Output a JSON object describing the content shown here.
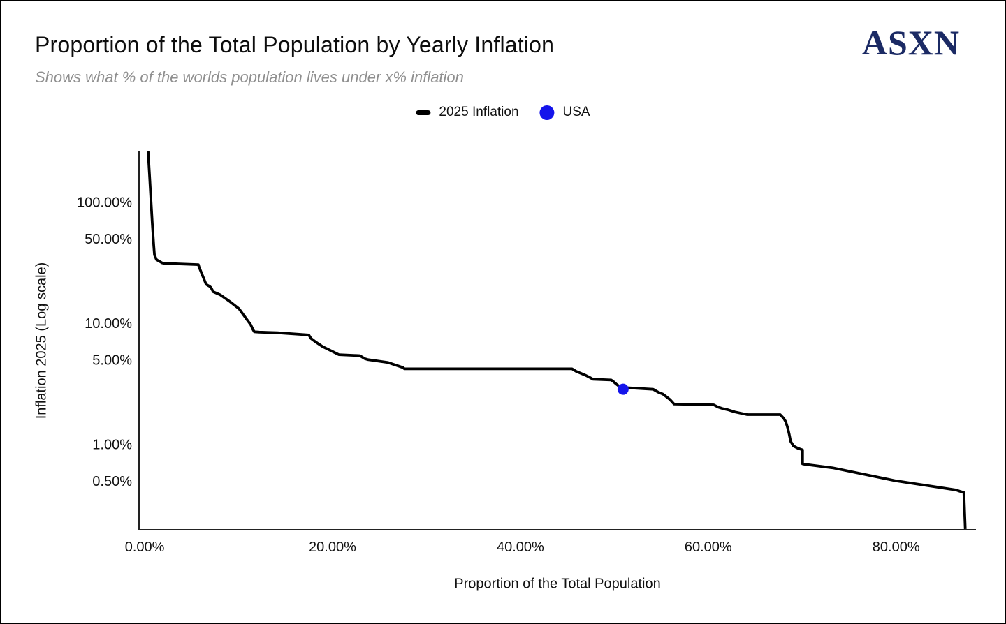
{
  "header": {
    "logo": "ASXN"
  },
  "legend": {
    "items": [
      {
        "label": "2025 Inflation",
        "marker": "dash-icon",
        "color": "#000000"
      },
      {
        "label": "USA",
        "marker": "dot-icon",
        "color": "#1414eb"
      }
    ]
  },
  "colors": {
    "curve": "#000000",
    "usa_blue": "#1414eb",
    "logo_navy": "#1b2a64",
    "subtitle_gray": "#8f8f8f",
    "axis": "#222222"
  },
  "chart_data": {
    "type": "line",
    "title": "Proportion of the Total Population by Yearly Inflation",
    "subtitle": "Shows what % of the worlds population lives under x% inflation",
    "grid": false,
    "legend_position": "top-center",
    "x_axis": {
      "label": "Proportion of the Total Population",
      "scale": "linear",
      "range": [
        -0.6,
        88.5
      ],
      "unit": "%",
      "ticks": [
        {
          "value": 0,
          "label": "0.00%"
        },
        {
          "value": 20,
          "label": "20.00%"
        },
        {
          "value": 40,
          "label": "40.00%"
        },
        {
          "value": 60,
          "label": "60.00%"
        },
        {
          "value": 80,
          "label": "80.00%"
        }
      ]
    },
    "y_axis": {
      "label": "Inflation 2025 (Log scale)",
      "scale": "log",
      "range": [
        0.197,
        262
      ],
      "unit": "%",
      "ticks": [
        {
          "value": 100,
          "label": "100.00%"
        },
        {
          "value": 50,
          "label": "50.00%"
        },
        {
          "value": 10,
          "label": "10.00%"
        },
        {
          "value": 5,
          "label": "5.00%"
        },
        {
          "value": 1,
          "label": "1.00%"
        },
        {
          "value": 0.5,
          "label": "0.50%"
        }
      ]
    },
    "series": [
      {
        "name": "2025 Inflation",
        "type": "line",
        "color": "#000000",
        "points": [
          [
            0.37,
            262
          ],
          [
            0.52,
            164
          ],
          [
            0.67,
            103
          ],
          [
            0.82,
            65
          ],
          [
            0.97,
            43.6
          ],
          [
            1.04,
            36.7
          ],
          [
            1.26,
            33.5
          ],
          [
            1.86,
            31.5
          ],
          [
            2.08,
            31.2
          ],
          [
            5.72,
            30.5
          ],
          [
            5.8,
            29
          ],
          [
            6.54,
            21
          ],
          [
            6.69,
            20.6
          ],
          [
            6.9,
            20.2
          ],
          [
            7.06,
            19.7
          ],
          [
            7.3,
            18.2
          ],
          [
            8.03,
            17.2
          ],
          [
            9.07,
            15.1
          ],
          [
            10.04,
            13.2
          ],
          [
            10.56,
            11.6
          ],
          [
            11.3,
            9.7
          ],
          [
            11.52,
            8.9
          ],
          [
            11.67,
            8.5
          ],
          [
            12.2,
            8.45
          ],
          [
            14.13,
            8.35
          ],
          [
            17.47,
            8.0
          ],
          [
            17.7,
            7.5
          ],
          [
            18.22,
            7.0
          ],
          [
            18.96,
            6.4
          ],
          [
            19.7,
            6.0
          ],
          [
            20.67,
            5.5
          ],
          [
            22.9,
            5.4
          ],
          [
            23.42,
            5.1
          ],
          [
            23.79,
            5.0
          ],
          [
            25.87,
            4.75
          ],
          [
            26.39,
            4.6
          ],
          [
            27.14,
            4.4
          ],
          [
            27.51,
            4.3
          ],
          [
            27.66,
            4.2
          ],
          [
            45.5,
            4.2
          ],
          [
            45.95,
            4.0
          ],
          [
            46.47,
            3.85
          ],
          [
            46.99,
            3.7
          ],
          [
            47.43,
            3.55
          ],
          [
            47.73,
            3.45
          ],
          [
            49.67,
            3.4
          ],
          [
            49.89,
            3.3
          ],
          [
            50.19,
            3.15
          ],
          [
            50.56,
            3.0
          ],
          [
            50.93,
            2.95
          ],
          [
            54.13,
            2.85
          ],
          [
            54.65,
            2.7
          ],
          [
            55.17,
            2.6
          ],
          [
            55.61,
            2.45
          ],
          [
            55.91,
            2.35
          ],
          [
            56.36,
            2.15
          ],
          [
            60.59,
            2.12
          ],
          [
            61.04,
            2.03
          ],
          [
            61.56,
            1.97
          ],
          [
            62.08,
            1.93
          ],
          [
            62.45,
            1.89
          ],
          [
            62.83,
            1.85
          ],
          [
            63.57,
            1.8
          ],
          [
            64.16,
            1.76
          ],
          [
            67.66,
            1.76
          ],
          [
            68.03,
            1.64
          ],
          [
            68.25,
            1.54
          ],
          [
            68.48,
            1.35
          ],
          [
            68.62,
            1.21
          ],
          [
            68.77,
            1.06
          ],
          [
            69.07,
            0.97
          ],
          [
            69.52,
            0.93
          ],
          [
            70.04,
            0.9
          ],
          [
            70.04,
            0.69
          ],
          [
            70.26,
            0.685
          ],
          [
            73.23,
            0.64
          ],
          [
            79.93,
            0.5
          ],
          [
            86.39,
            0.42
          ],
          [
            86.77,
            0.41
          ],
          [
            87.21,
            0.4
          ],
          [
            87.36,
            0.2
          ]
        ]
      },
      {
        "name": "USA",
        "type": "scatter",
        "color": "#1414eb",
        "points": [
          [
            50.93,
            2.85
          ]
        ]
      }
    ]
  }
}
